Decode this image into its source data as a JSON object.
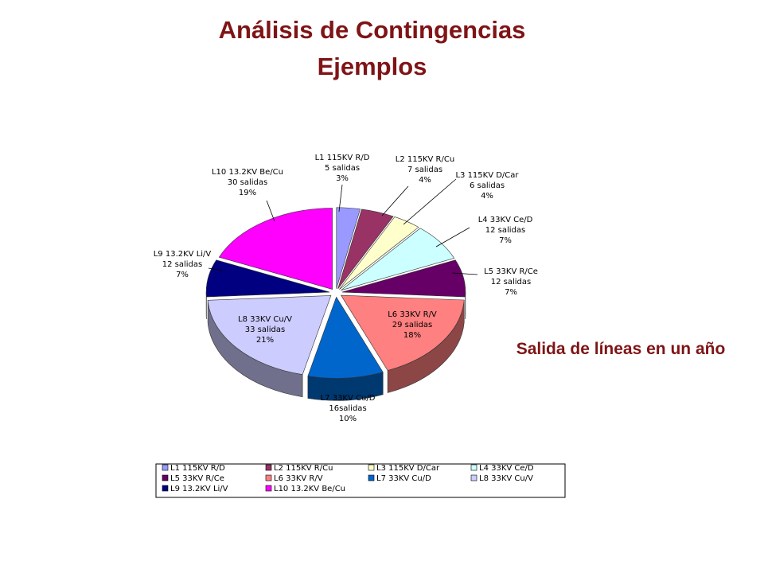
{
  "title": "Análisis de Contingencias",
  "subtitle": "Ejemplos",
  "side_text": "Salida de líneas en un año",
  "chart_data": {
    "type": "pie",
    "categories": [
      "L1 115KV R/D",
      "L2 115KV R/Cu",
      "L3 115KV D/Car",
      "L4 33KV Ce/D",
      "L5 33KV R/Ce",
      "L6 33KV R/V",
      "L7 33KV Cu/D",
      "L8 33KV Cu/V",
      "L9 13.2KV Li/V",
      "L10 13.2KV Be/Cu"
    ],
    "values": [
      5,
      7,
      6,
      12,
      12,
      29,
      16,
      33,
      12,
      30
    ],
    "value_labels": [
      "5 salidas",
      "7 salidas",
      "6 salidas",
      "12 salidas",
      "12 salidas",
      "29 salidas",
      "16salidas",
      "33 salidas",
      "12 salidas",
      "30 salidas"
    ],
    "percent_labels": [
      "3%",
      "4%",
      "4%",
      "7%",
      "7%",
      "18%",
      "10%",
      "21%",
      "7%",
      "19%"
    ],
    "colors": [
      "#9999ff",
      "#993366",
      "#ffffcc",
      "#ccffff",
      "#660066",
      "#ff8080",
      "#0066cc",
      "#ccccff",
      "#000080",
      "#ff00ff"
    ],
    "legend_position": "bottom",
    "style": "3D exploded pie"
  }
}
